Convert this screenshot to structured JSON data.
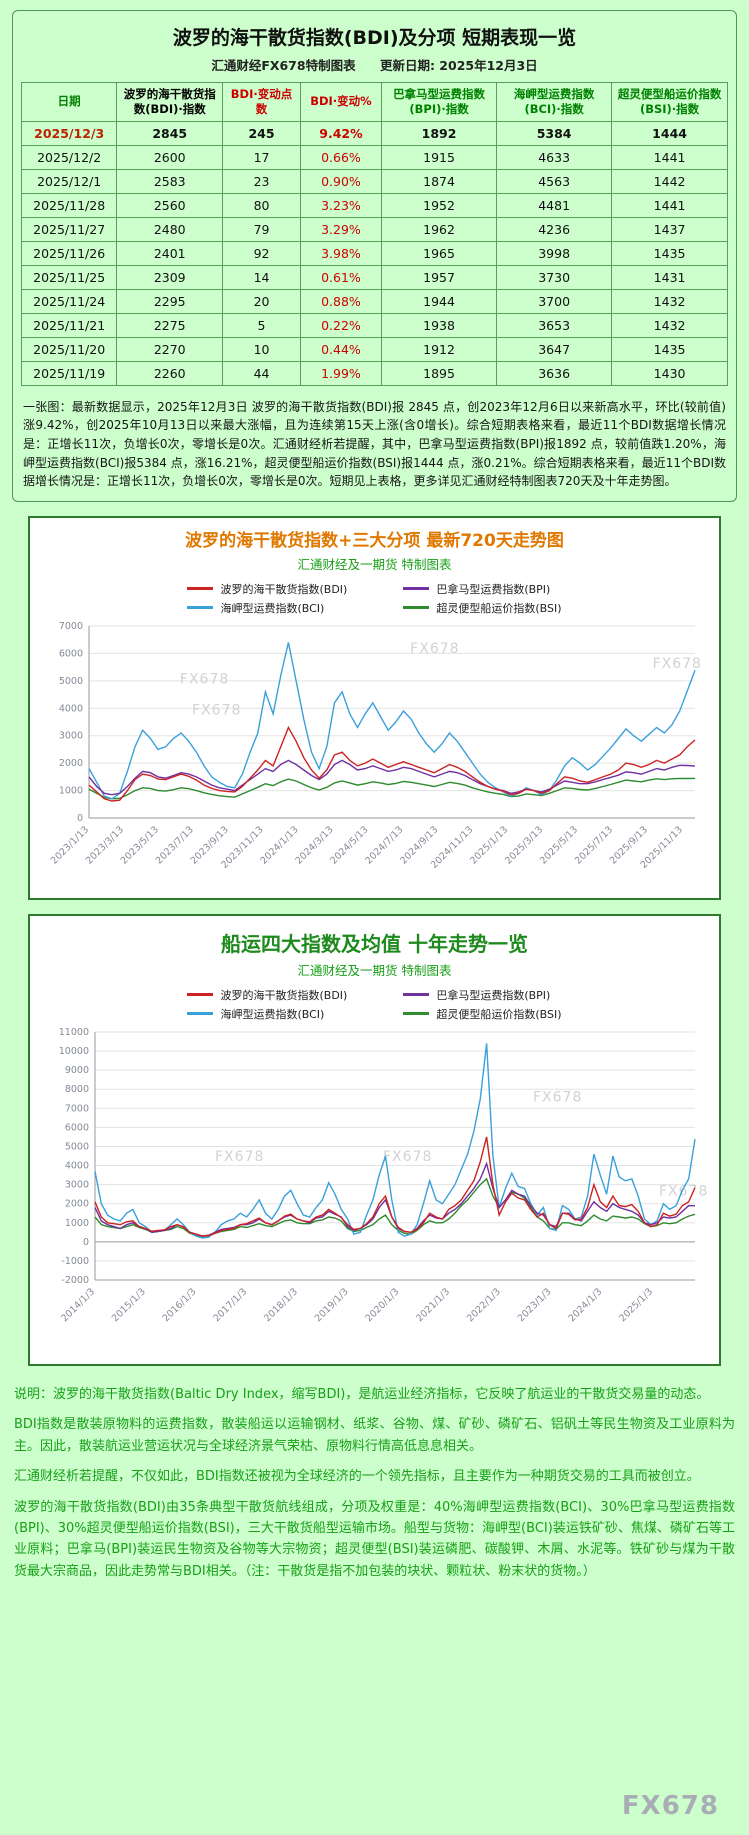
{
  "page": {
    "background": "#ccffcc",
    "watermark": "FX678"
  },
  "table_note": "一张图：最新数据显示，2025年12月3日 波罗的海干散货指数(BDI)报 2845 点，创2023年12月6日以来新高水平，环比(较前值)涨9.42%，创2025年10月13日以来最大涨幅，且为连续第15天上涨(含0增长)。综合短期表格来看，最近11个BDI数据增长情况是：正增长11次，负增长0次，零增长是0次。汇通财经析若提醒，其中，巴拿马型运费指数(BPI)报1892 点，较前值跌1.20%，海岬型运费指数(BCI)报5384 点，涨16.21%，超灵便型船运价指数(BSI)报1444 点，涨0.21%。综合短期表格来看，最近11个BDI数据增长情况是：正增长11次，负增长0次，零增长是0次。短期见上表格，更多详见汇通财经特制图表720天及十年走势图。",
  "footer": {
    "paragraphs": [
      "说明：波罗的海干散货指数(Baltic Dry Index，缩写BDI)，是航运业经济指标，它反映了航运业的干散货交易量的动态。",
      "BDI指数是散装原物料的运费指数，散装船运以运输钢材、纸浆、谷物、煤、矿砂、磷矿石、铝矾土等民生物资及工业原料为主。因此，散装航运业营运状况与全球经济景气荣枯、原物料行情高低息息相关。",
      "汇通财经析若提醒，不仅如此，BDI指数还被视为全球经济的一个领先指标，且主要作为一种期货交易的工具而被创立。",
      "波罗的海干散货指数(BDI)由35条典型干散货航线组成，分项及权重是：40%海岬型运费指数(BCI)、30%巴拿马型运费指数(BPI)、30%超灵便型船运价指数(BSI)，三大干散货船型运输市场。船型与货物：海岬型(BCI)装运铁矿砂、焦煤、磷矿石等工业原料；巴拿马(BPI)装运民生物资及谷物等大宗物资；超灵便型(BSI)装运磷肥、碳酸钾、木屑、水泥等。铁矿砂与煤为干散货最大宗商品，因此走势常与BDI相关。（注：干散货是指不加包装的块状、颗粒状、粉末状的货物。）"
    ]
  },
  "chart_data": [
    {
      "type": "table",
      "title": "波罗的海干散货指数(BDI)及分项 短期表现一览",
      "source": "汇通财经FX678特制图表",
      "update_date": "更新日期: 2025年12月3日",
      "columns": [
        {
          "label": "日期",
          "color": "#008000"
        },
        {
          "label": "波罗的海干散货指数(BDI)·指数",
          "color": "#000000"
        },
        {
          "label": "BDI·变动点数",
          "color": "#cc0000"
        },
        {
          "label": "BDI·变动%",
          "color": "#cc0000"
        },
        {
          "label": "巴拿马型运费指数(BPI)·指数",
          "color": "#008000"
        },
        {
          "label": "海岬型运费指数(BCI)·指数",
          "color": "#008000"
        },
        {
          "label": "超灵便型船运价指数(BSI)·指数",
          "color": "#008000"
        }
      ],
      "rows": [
        [
          "2025/12/3",
          "2845",
          "245",
          "9.42%",
          "1892",
          "5384",
          "1444"
        ],
        [
          "2025/12/2",
          "2600",
          "17",
          "0.66%",
          "1915",
          "4633",
          "1441"
        ],
        [
          "2025/12/1",
          "2583",
          "23",
          "0.90%",
          "1874",
          "4563",
          "1442"
        ],
        [
          "2025/11/28",
          "2560",
          "80",
          "3.23%",
          "1952",
          "4481",
          "1441"
        ],
        [
          "2025/11/27",
          "2480",
          "79",
          "3.29%",
          "1962",
          "4236",
          "1437"
        ],
        [
          "2025/11/26",
          "2401",
          "92",
          "3.98%",
          "1965",
          "3998",
          "1435"
        ],
        [
          "2025/11/25",
          "2309",
          "14",
          "0.61%",
          "1957",
          "3730",
          "1431"
        ],
        [
          "2025/11/24",
          "2295",
          "20",
          "0.88%",
          "1944",
          "3700",
          "1432"
        ],
        [
          "2025/11/21",
          "2275",
          "5",
          "0.22%",
          "1938",
          "3653",
          "1432"
        ],
        [
          "2025/11/20",
          "2270",
          "10",
          "0.44%",
          "1912",
          "3647",
          "1435"
        ],
        [
          "2025/11/19",
          "2260",
          "44",
          "1.99%",
          "1895",
          "3636",
          "1430"
        ]
      ]
    },
    {
      "type": "line",
      "title": "波罗的海干散货指数+三大分项  最新720天走势图",
      "subtitle": "汇通财经及一期货  特制图表",
      "title_color": "#e07800",
      "grid": true,
      "legend_position": "top",
      "ylim": [
        0,
        7000
      ],
      "ytick_step": 1000,
      "x_labels": [
        "2023/1/13",
        "2023/3/13",
        "2023/5/13",
        "2023/7/13",
        "2023/9/13",
        "2023/11/13",
        "2024/1/13",
        "2024/3/13",
        "2024/5/13",
        "2024/7/13",
        "2024/9/13",
        "2024/11/13",
        "2025/1/13",
        "2025/3/13",
        "2025/5/13",
        "2025/7/13",
        "2025/9/13",
        "2025/11/13"
      ],
      "series": [
        {
          "name": "波罗的海干散货指数(BDI)",
          "color": "#cc2222",
          "values": [
            1200,
            950,
            700,
            620,
            650,
            1000,
            1400,
            1600,
            1550,
            1420,
            1400,
            1500,
            1600,
            1520,
            1380,
            1200,
            1080,
            1000,
            970,
            950,
            1150,
            1450,
            1750,
            2100,
            1900,
            2600,
            3300,
            2800,
            2200,
            1750,
            1450,
            1750,
            2300,
            2400,
            2100,
            1900,
            2000,
            2150,
            2000,
            1850,
            1950,
            2050,
            1950,
            1850,
            1750,
            1650,
            1800,
            1950,
            1850,
            1700,
            1500,
            1300,
            1150,
            1050,
            980,
            850,
            900,
            1050,
            1000,
            900,
            1000,
            1250,
            1500,
            1450,
            1350,
            1300,
            1400,
            1500,
            1600,
            1750,
            2000,
            1950,
            1850,
            1950,
            2100,
            2000,
            2150,
            2300,
            2600,
            2845
          ]
        },
        {
          "name": "巴拿马型运费指数(BPI)",
          "color": "#7030a0",
          "values": [
            1500,
            1150,
            900,
            850,
            900,
            1150,
            1450,
            1700,
            1650,
            1500,
            1450,
            1550,
            1650,
            1600,
            1500,
            1350,
            1200,
            1100,
            1050,
            1000,
            1200,
            1400,
            1600,
            1800,
            1700,
            1950,
            2100,
            1950,
            1750,
            1550,
            1400,
            1600,
            1950,
            2100,
            1950,
            1750,
            1800,
            1900,
            1800,
            1700,
            1750,
            1850,
            1800,
            1700,
            1600,
            1500,
            1600,
            1700,
            1650,
            1550,
            1400,
            1250,
            1150,
            1050,
            1000,
            900,
            950,
            1050,
            1000,
            950,
            1050,
            1200,
            1350,
            1300,
            1250,
            1250,
            1320,
            1400,
            1480,
            1560,
            1680,
            1650,
            1600,
            1700,
            1800,
            1750,
            1850,
            1920,
            1915,
            1892
          ]
        },
        {
          "name": "海岬型运费指数(BCI)",
          "color": "#3aa0dc",
          "values": [
            1800,
            1300,
            800,
            700,
            900,
            1700,
            2600,
            3200,
            2900,
            2500,
            2600,
            2900,
            3100,
            2800,
            2400,
            1900,
            1500,
            1300,
            1150,
            1100,
            1600,
            2400,
            3100,
            4600,
            3800,
            5200,
            6400,
            5000,
            3600,
            2400,
            1800,
            2600,
            4200,
            4600,
            3800,
            3300,
            3800,
            4200,
            3700,
            3200,
            3500,
            3900,
            3600,
            3100,
            2700,
            2400,
            2700,
            3100,
            2800,
            2400,
            2000,
            1600,
            1300,
            1100,
            950,
            800,
            900,
            1100,
            1000,
            850,
            1000,
            1400,
            1900,
            2200,
            2000,
            1750,
            1950,
            2250,
            2550,
            2900,
            3250,
            3000,
            2800,
            3050,
            3300,
            3100,
            3400,
            3900,
            4633,
            5384
          ]
        },
        {
          "name": "超灵便型船运价指数(BSI)",
          "color": "#2e8b2e",
          "values": [
            1050,
            900,
            750,
            700,
            720,
            850,
            1000,
            1100,
            1080,
            1000,
            980,
            1030,
            1100,
            1070,
            1000,
            920,
            860,
            810,
            780,
            760,
            880,
            1000,
            1120,
            1250,
            1180,
            1320,
            1420,
            1350,
            1220,
            1100,
            1020,
            1120,
            1280,
            1350,
            1280,
            1200,
            1250,
            1320,
            1280,
            1220,
            1260,
            1330,
            1300,
            1250,
            1200,
            1150,
            1220,
            1300,
            1260,
            1200,
            1100,
            1020,
            950,
            900,
            860,
            780,
            800,
            880,
            850,
            820,
            900,
            1000,
            1100,
            1080,
            1040,
            1020,
            1080,
            1150,
            1220,
            1300,
            1380,
            1350,
            1320,
            1380,
            1430,
            1400,
            1430,
            1445,
            1441,
            1444
          ]
        }
      ]
    },
    {
      "type": "line",
      "title": "船运四大指数及均值 十年走势一览",
      "subtitle": "汇通财经及一期货  特制图表",
      "title_color": "#1e8a1e",
      "grid": true,
      "legend_position": "top",
      "ylim": [
        -2000,
        11000
      ],
      "ytick_step": 1000,
      "x_labels": [
        "2014/1/3",
        "2015/1/3",
        "2016/1/3",
        "2017/1/3",
        "2018/1/3",
        "2019/1/3",
        "2020/1/3",
        "2021/1/3",
        "2022/1/3",
        "2023/1/3",
        "2024/1/3",
        "2025/1/3"
      ],
      "series": [
        {
          "name": "波罗的海干散货指数(BDI)",
          "color": "#cc2222",
          "values": [
            2100,
            1300,
            1000,
            950,
            900,
            1050,
            1100,
            800,
            700,
            560,
            600,
            630,
            800,
            900,
            780,
            500,
            400,
            300,
            320,
            450,
            600,
            650,
            700,
            900,
            950,
            1100,
            1250,
            1000,
            900,
            1100,
            1350,
            1450,
            1200,
            1100,
            1050,
            1300,
            1400,
            1700,
            1500,
            1270,
            900,
            650,
            700,
            950,
            1300,
            2000,
            2400,
            1300,
            760,
            550,
            500,
            650,
            1000,
            1500,
            1300,
            1200,
            1700,
            1900,
            2200,
            2700,
            3200,
            4200,
            5500,
            3000,
            1400,
            2100,
            2550,
            2300,
            2200,
            1700,
            1300,
            1500,
            900,
            700,
            1500,
            1450,
            1150,
            1200,
            1800,
            3000,
            2100,
            1800,
            2400,
            1900,
            1850,
            1950,
            1600,
            1000,
            800,
            900,
            1500,
            1350,
            1450,
            1900,
            2100,
            2845
          ]
        },
        {
          "name": "巴拿马型运费指数(BPI)",
          "color": "#7030a0",
          "values": [
            1800,
            1100,
            900,
            800,
            700,
            900,
            1000,
            800,
            700,
            500,
            550,
            600,
            700,
            900,
            800,
            500,
            400,
            300,
            350,
            500,
            650,
            700,
            750,
            900,
            900,
            1000,
            1200,
            1000,
            900,
            1100,
            1300,
            1400,
            1200,
            1100,
            1000,
            1250,
            1300,
            1600,
            1450,
            1300,
            800,
            600,
            700,
            900,
            1200,
            1800,
            2200,
            1300,
            700,
            550,
            500,
            700,
            1100,
            1400,
            1250,
            1200,
            1500,
            1700,
            2000,
            2400,
            2800,
            3300,
            4100,
            2800,
            1800,
            2200,
            2700,
            2500,
            2400,
            1900,
            1500,
            1400,
            900,
            800,
            1500,
            1500,
            1200,
            1100,
            1600,
            2100,
            1800,
            1600,
            2000,
            1800,
            1700,
            1600,
            1400,
            1000,
            900,
            1000,
            1300,
            1250,
            1300,
            1600,
            1900,
            1892
          ]
        },
        {
          "name": "海岬型运费指数(BCI)",
          "color": "#3aa0dc",
          "values": [
            3700,
            2000,
            1400,
            1200,
            1100,
            1500,
            1700,
            1000,
            800,
            500,
            550,
            600,
            900,
            1200,
            900,
            500,
            300,
            200,
            250,
            500,
            900,
            1100,
            1200,
            1500,
            1300,
            1700,
            2200,
            1500,
            1200,
            1700,
            2400,
            2700,
            2000,
            1400,
            1300,
            1800,
            2200,
            3100,
            2500,
            1700,
            1200,
            400,
            500,
            1400,
            2200,
            3500,
            4500,
            2200,
            500,
            300,
            400,
            900,
            2000,
            3200,
            2200,
            2000,
            2500,
            3000,
            3800,
            4600,
            5800,
            7500,
            10400,
            4500,
            1800,
            2800,
            3600,
            2900,
            2800,
            2000,
            1400,
            1800,
            700,
            600,
            1900,
            1700,
            1200,
            1300,
            2400,
            4600,
            3500,
            2500,
            4500,
            3400,
            3200,
            3300,
            2400,
            1200,
            900,
            1100,
            2000,
            1700,
            1900,
            2700,
            3300,
            5384
          ]
        },
        {
          "name": "超灵便型船运价指数(BSI)",
          "color": "#2e8b2e",
          "values": [
            1300,
            900,
            800,
            750,
            700,
            800,
            900,
            750,
            650,
            500,
            550,
            600,
            650,
            800,
            700,
            450,
            350,
            280,
            320,
            450,
            550,
            600,
            650,
            800,
            750,
            850,
            950,
            850,
            800,
            950,
            1100,
            1150,
            1000,
            950,
            950,
            1100,
            1150,
            1300,
            1250,
            1100,
            700,
            550,
            600,
            750,
            900,
            1200,
            1400,
            900,
            600,
            450,
            400,
            600,
            900,
            1100,
            1000,
            1000,
            1200,
            1500,
            1900,
            2200,
            2600,
            3000,
            3300,
            2400,
            1800,
            2200,
            2600,
            2500,
            2300,
            1800,
            1300,
            1100,
            700,
            650,
            1000,
            1000,
            900,
            850,
            1100,
            1400,
            1200,
            1100,
            1350,
            1300,
            1250,
            1300,
            1200,
            950,
            800,
            850,
            1000,
            950,
            1000,
            1200,
            1350,
            1444
          ]
        }
      ]
    }
  ]
}
